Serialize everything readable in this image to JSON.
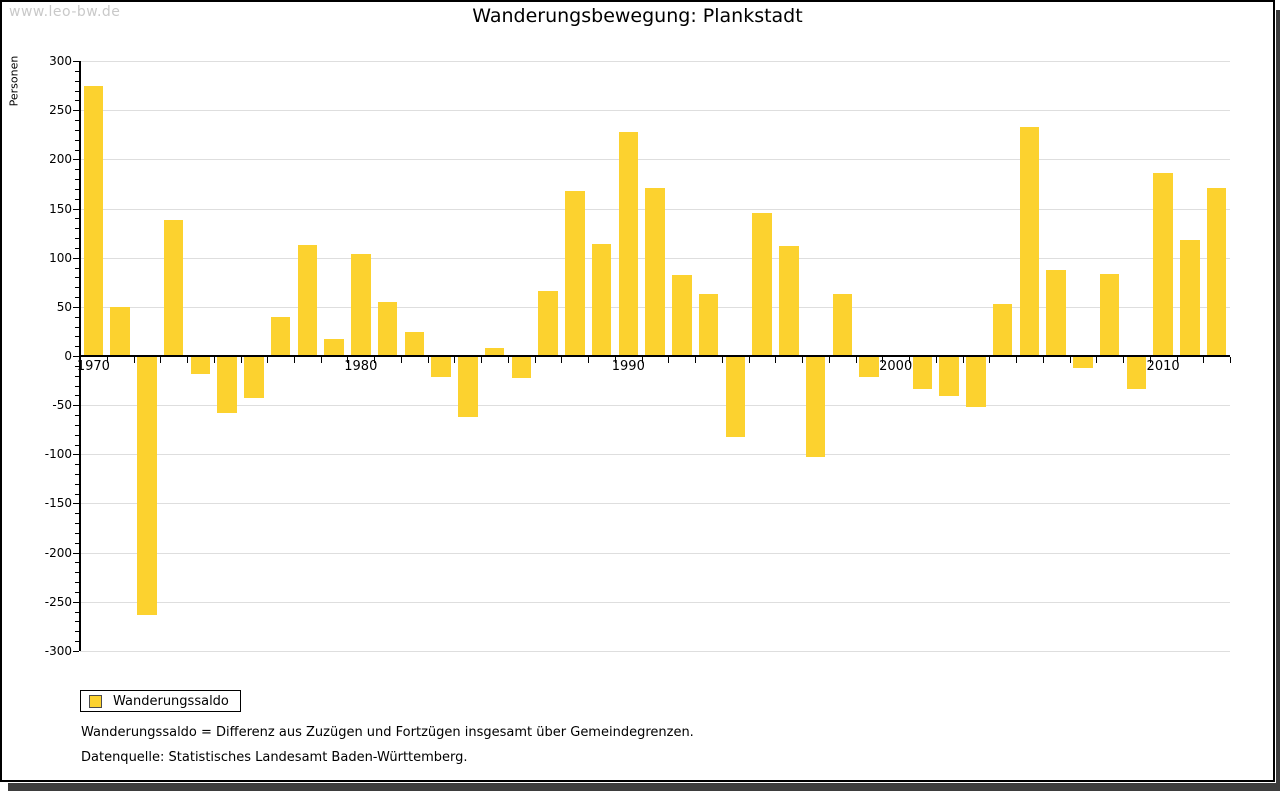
{
  "watermark": "www.leo-bw.de",
  "title": "Wanderungsbewegung: Plankstadt",
  "y_axis_title": "Personen",
  "legend": {
    "label": "Wanderungssaldo"
  },
  "notes": {
    "line1": "Wanderungssaldo = Differenz aus Zuzügen und Fortzügen insgesamt über Gemeindegrenzen.",
    "line2": "Datenquelle: Statistisches Landesamt Baden-Württemberg."
  },
  "colors": {
    "bar": "#fcd22f",
    "grid": "#dedede",
    "axis": "#000000",
    "watermark": "#c9c9c9",
    "shadow": "#3d3d3d"
  },
  "chart_data": {
    "type": "bar",
    "title": "Wanderungsbewegung: Plankstadt",
    "ylabel": "Personen",
    "xlabel": "",
    "series_name": "Wanderungssaldo",
    "ylim": [
      -300,
      300
    ],
    "ytick_step": 50,
    "yticks": [
      300,
      250,
      200,
      150,
      100,
      50,
      0,
      -50,
      -100,
      -150,
      -200,
      -250,
      -300
    ],
    "xtick_labels": [
      "1970",
      "1980",
      "1990",
      "2000",
      "2010"
    ],
    "grid": "horizontal",
    "legend_position": "bottom-left",
    "x": [
      1970,
      1971,
      1972,
      1973,
      1974,
      1975,
      1976,
      1977,
      1978,
      1979,
      1980,
      1981,
      1982,
      1983,
      1984,
      1985,
      1986,
      1987,
      1988,
      1989,
      1990,
      1991,
      1992,
      1993,
      1994,
      1995,
      1996,
      1997,
      1998,
      1999,
      2000,
      2001,
      2002,
      2003,
      2004,
      2005,
      2006,
      2007,
      2008,
      2009,
      2010,
      2011,
      2012
    ],
    "values": [
      275,
      50,
      -263,
      138,
      -18,
      -58,
      -43,
      40,
      113,
      17,
      104,
      55,
      24,
      -21,
      -62,
      8,
      -22,
      66,
      168,
      114,
      228,
      171,
      82,
      63,
      -82,
      146,
      112,
      -103,
      63,
      -21,
      0,
      -34,
      -41,
      -52,
      53,
      233,
      88,
      -12,
      83,
      -34,
      186,
      118,
      171
    ]
  }
}
